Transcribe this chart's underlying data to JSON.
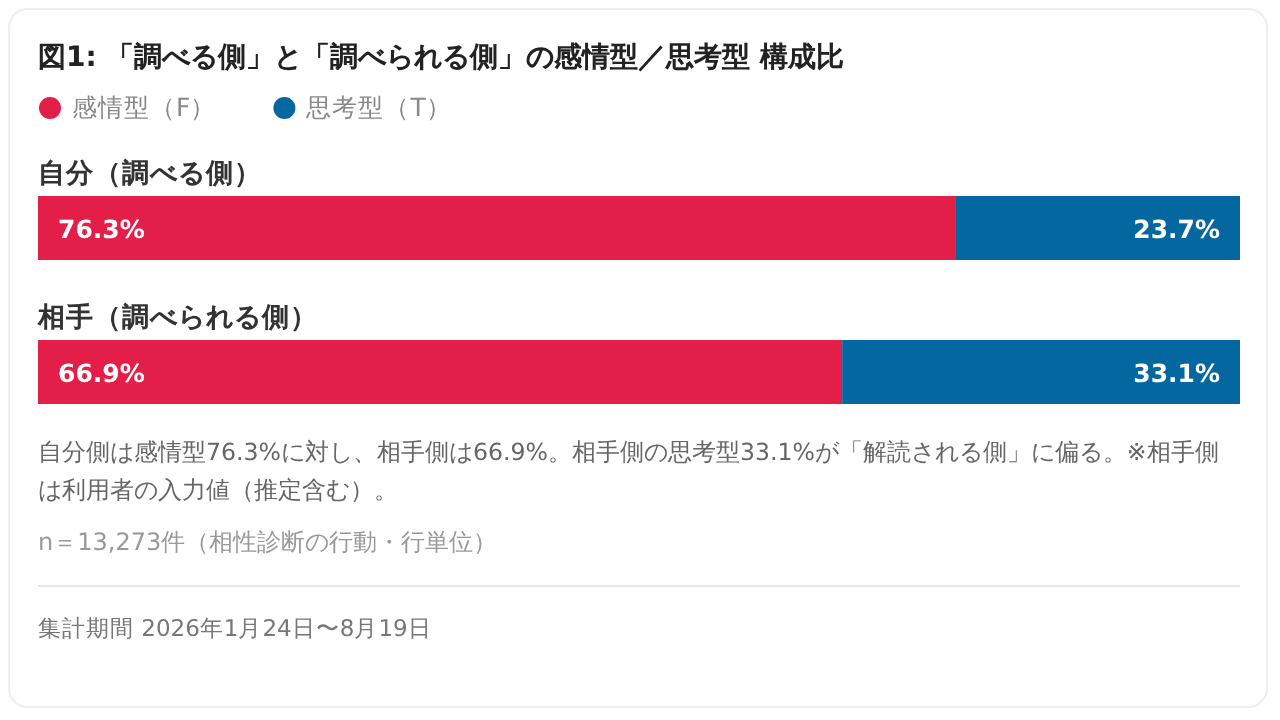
{
  "chart_data": {
    "type": "bar",
    "orientation": "horizontal",
    "stacked": true,
    "title": "図1: 「調べる側」と「調べられる側」の感情型／思考型 構成比",
    "categories": [
      "自分（調べる側）",
      "相手（調べられる側）"
    ],
    "series": [
      {
        "name": "感情型（F）",
        "color": "#e31e48",
        "values": [
          76.3,
          66.9
        ],
        "value_labels": [
          "76.3%",
          "66.9%"
        ]
      },
      {
        "name": "思考型（T）",
        "color": "#0567a0",
        "values": [
          23.7,
          33.1
        ],
        "value_labels": [
          "23.7%",
          "33.1%"
        ]
      }
    ],
    "legend": "top left",
    "annotations": [
      "自分側は感情型76.3%に対し、相手側は66.9%。相手側の思考型33.1%が「解読される側」に偏る。※相手側は利用者の入力値（推定含む）。",
      "n＝13,273件（相性診断の行動・行単位）",
      "集計期間 2026年1月24日〜8月19日"
    ]
  }
}
